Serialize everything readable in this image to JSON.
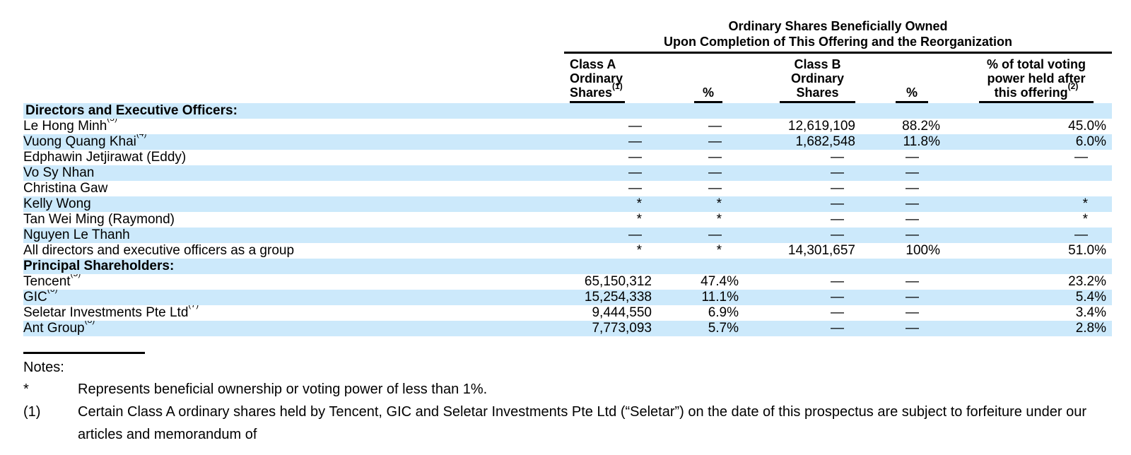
{
  "header": {
    "title_line1": "Ordinary Shares Beneficially Owned",
    "title_line2": "Upon Completion of This Offering and the Reorganization",
    "columns": {
      "class_a": {
        "line1": "Class A",
        "line2": "Ordinary",
        "line3": "Shares",
        "sup": "(1)"
      },
      "pct_a": "%",
      "class_b": {
        "line1": "Class B",
        "line2": "Ordinary",
        "line3": "Shares"
      },
      "pct_b": "%",
      "voting": {
        "line1": "% of total voting",
        "line2": "power held after",
        "line3": "this offering",
        "sup": "(2)"
      }
    }
  },
  "rows": [
    {
      "name": "Directors and Executive Officers:",
      "sup": "",
      "values": [
        "",
        "",
        "",
        "",
        ""
      ]
    },
    {
      "name": "Le Hong Minh",
      "sup": "(3)",
      "values": [
        "—",
        "—",
        "12,619,109",
        "88.2%",
        "45.0%"
      ]
    },
    {
      "name": "Vuong Quang Khai",
      "sup": "(4)",
      "values": [
        "—",
        "—",
        "1,682,548",
        "11.8%",
        "6.0%"
      ]
    },
    {
      "name": "Edphawin Jetjirawat (Eddy)",
      "sup": "",
      "values": [
        "—",
        "—",
        "—",
        "—",
        "—"
      ]
    },
    {
      "name": "Vo Sy Nhan",
      "sup": "",
      "values": [
        "—",
        "—",
        "—",
        "—",
        ""
      ]
    },
    {
      "name": "Christina Gaw",
      "sup": "",
      "values": [
        "—",
        "—",
        "—",
        "—",
        ""
      ]
    },
    {
      "name": "Kelly Wong",
      "sup": "",
      "values": [
        "*",
        "*",
        "—",
        "—",
        "*"
      ]
    },
    {
      "name": "Tan Wei Ming (Raymond)",
      "sup": "",
      "values": [
        "*",
        "*",
        "—",
        "—",
        "*"
      ]
    },
    {
      "name": "Nguyen Le Thanh",
      "sup": "",
      "values": [
        "—",
        "—",
        "—",
        "—",
        "—"
      ]
    },
    {
      "name": "All directors and executive officers as a group",
      "sup": "",
      "values": [
        "*",
        "*",
        "14,301,657",
        "100%",
        "51.0%"
      ]
    },
    {
      "name": "Principal Shareholders:",
      "sup": "",
      "values": [
        "",
        "",
        "",
        "",
        ""
      ]
    },
    {
      "name": "Tencent",
      "sup": "(5)",
      "values": [
        "65,150,312",
        "47.4%",
        "—",
        "—",
        "23.2%"
      ]
    },
    {
      "name": "GIC",
      "sup": "(6)",
      "values": [
        "15,254,338",
        "11.1%",
        "—",
        "—",
        "5.4%"
      ]
    },
    {
      "name": "Seletar Investments Pte Ltd",
      "sup": "(7)",
      "values": [
        "9,444,550",
        "6.9%",
        "—",
        "—",
        "3.4%"
      ]
    },
    {
      "name": "Ant Group",
      "sup": "(8)",
      "values": [
        "7,773,093",
        "5.7%",
        "—",
        "—",
        "2.8%"
      ]
    }
  ],
  "notes": {
    "heading": "Notes:",
    "items": [
      {
        "marker": "*",
        "text": "Represents beneficial ownership or voting power of less than 1%."
      },
      {
        "marker": "(1)",
        "text": "Certain Class A ordinary shares held by Tencent, GIC and Seletar Investments Pte Ltd (“Seletar”) on the date of this prospectus are subject to forfeiture under our articles and memorandum of"
      }
    ]
  },
  "colors": {
    "row_stripe": "#cce9fb",
    "text": "#000000"
  }
}
